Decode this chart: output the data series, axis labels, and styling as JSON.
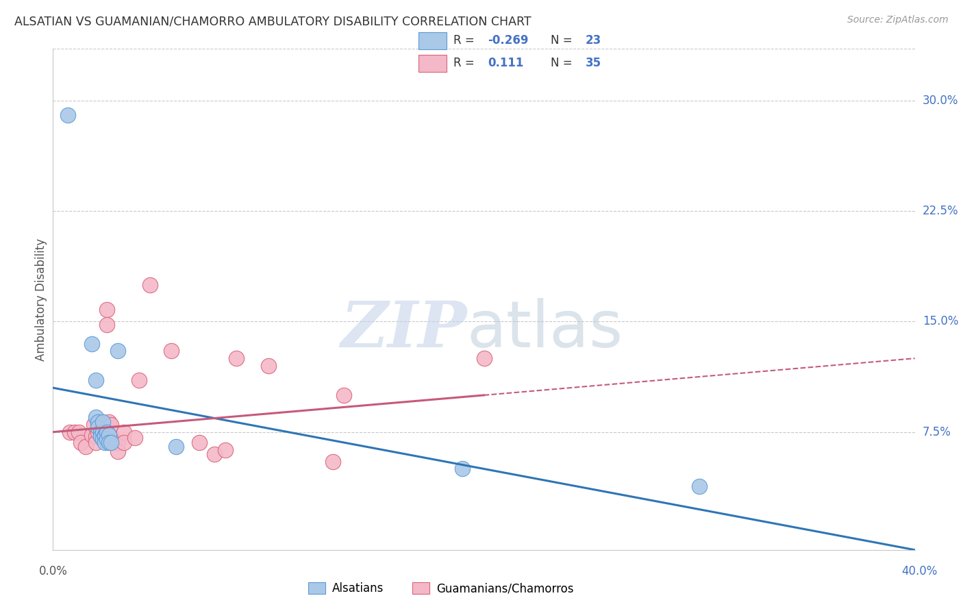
{
  "title": "ALSATIAN VS GUAMANIAN/CHAMORRO AMBULATORY DISABILITY CORRELATION CHART",
  "source": "Source: ZipAtlas.com",
  "ylabel": "Ambulatory Disability",
  "ytick_labels": [
    "7.5%",
    "15.0%",
    "22.5%",
    "30.0%"
  ],
  "ytick_values": [
    0.075,
    0.15,
    0.225,
    0.3
  ],
  "xlim": [
    0.0,
    0.4
  ],
  "ylim": [
    -0.005,
    0.335
  ],
  "blue_color": "#aac8e8",
  "blue_edge_color": "#5b9bd5",
  "pink_color": "#f4b8c8",
  "pink_edge_color": "#d9637a",
  "blue_line_color": "#2e75b6",
  "pink_line_color": "#c55a7a",
  "watermark_zip": "ZIP",
  "watermark_atlas": "atlas",
  "alsatian_x": [
    0.007,
    0.018,
    0.02,
    0.02,
    0.021,
    0.021,
    0.022,
    0.022,
    0.023,
    0.023,
    0.023,
    0.024,
    0.024,
    0.024,
    0.025,
    0.025,
    0.026,
    0.026,
    0.027,
    0.03,
    0.057,
    0.19,
    0.3
  ],
  "alsatian_y": [
    0.29,
    0.135,
    0.11,
    0.085,
    0.082,
    0.078,
    0.075,
    0.072,
    0.075,
    0.082,
    0.07,
    0.073,
    0.072,
    0.068,
    0.075,
    0.07,
    0.073,
    0.068,
    0.068,
    0.13,
    0.065,
    0.05,
    0.038
  ],
  "guamanian_x": [
    0.008,
    0.01,
    0.012,
    0.013,
    0.015,
    0.018,
    0.019,
    0.02,
    0.02,
    0.021,
    0.021,
    0.022,
    0.022,
    0.023,
    0.025,
    0.025,
    0.026,
    0.027,
    0.028,
    0.03,
    0.03,
    0.033,
    0.033,
    0.038,
    0.04,
    0.045,
    0.055,
    0.068,
    0.075,
    0.08,
    0.085,
    0.1,
    0.13,
    0.135,
    0.2
  ],
  "guamanian_y": [
    0.075,
    0.075,
    0.075,
    0.068,
    0.065,
    0.073,
    0.08,
    0.072,
    0.068,
    0.082,
    0.075,
    0.08,
    0.078,
    0.082,
    0.158,
    0.148,
    0.082,
    0.08,
    0.07,
    0.068,
    0.062,
    0.075,
    0.068,
    0.071,
    0.11,
    0.175,
    0.13,
    0.068,
    0.06,
    0.063,
    0.125,
    0.12,
    0.055,
    0.1,
    0.125
  ],
  "legend_blue_r": "-0.269",
  "legend_blue_n": "23",
  "legend_pink_r": "0.111",
  "legend_pink_n": "35",
  "blue_line_start_y": 0.105,
  "blue_line_end_y": -0.005,
  "pink_line_start_y": 0.075,
  "pink_line_end_y": 0.125
}
